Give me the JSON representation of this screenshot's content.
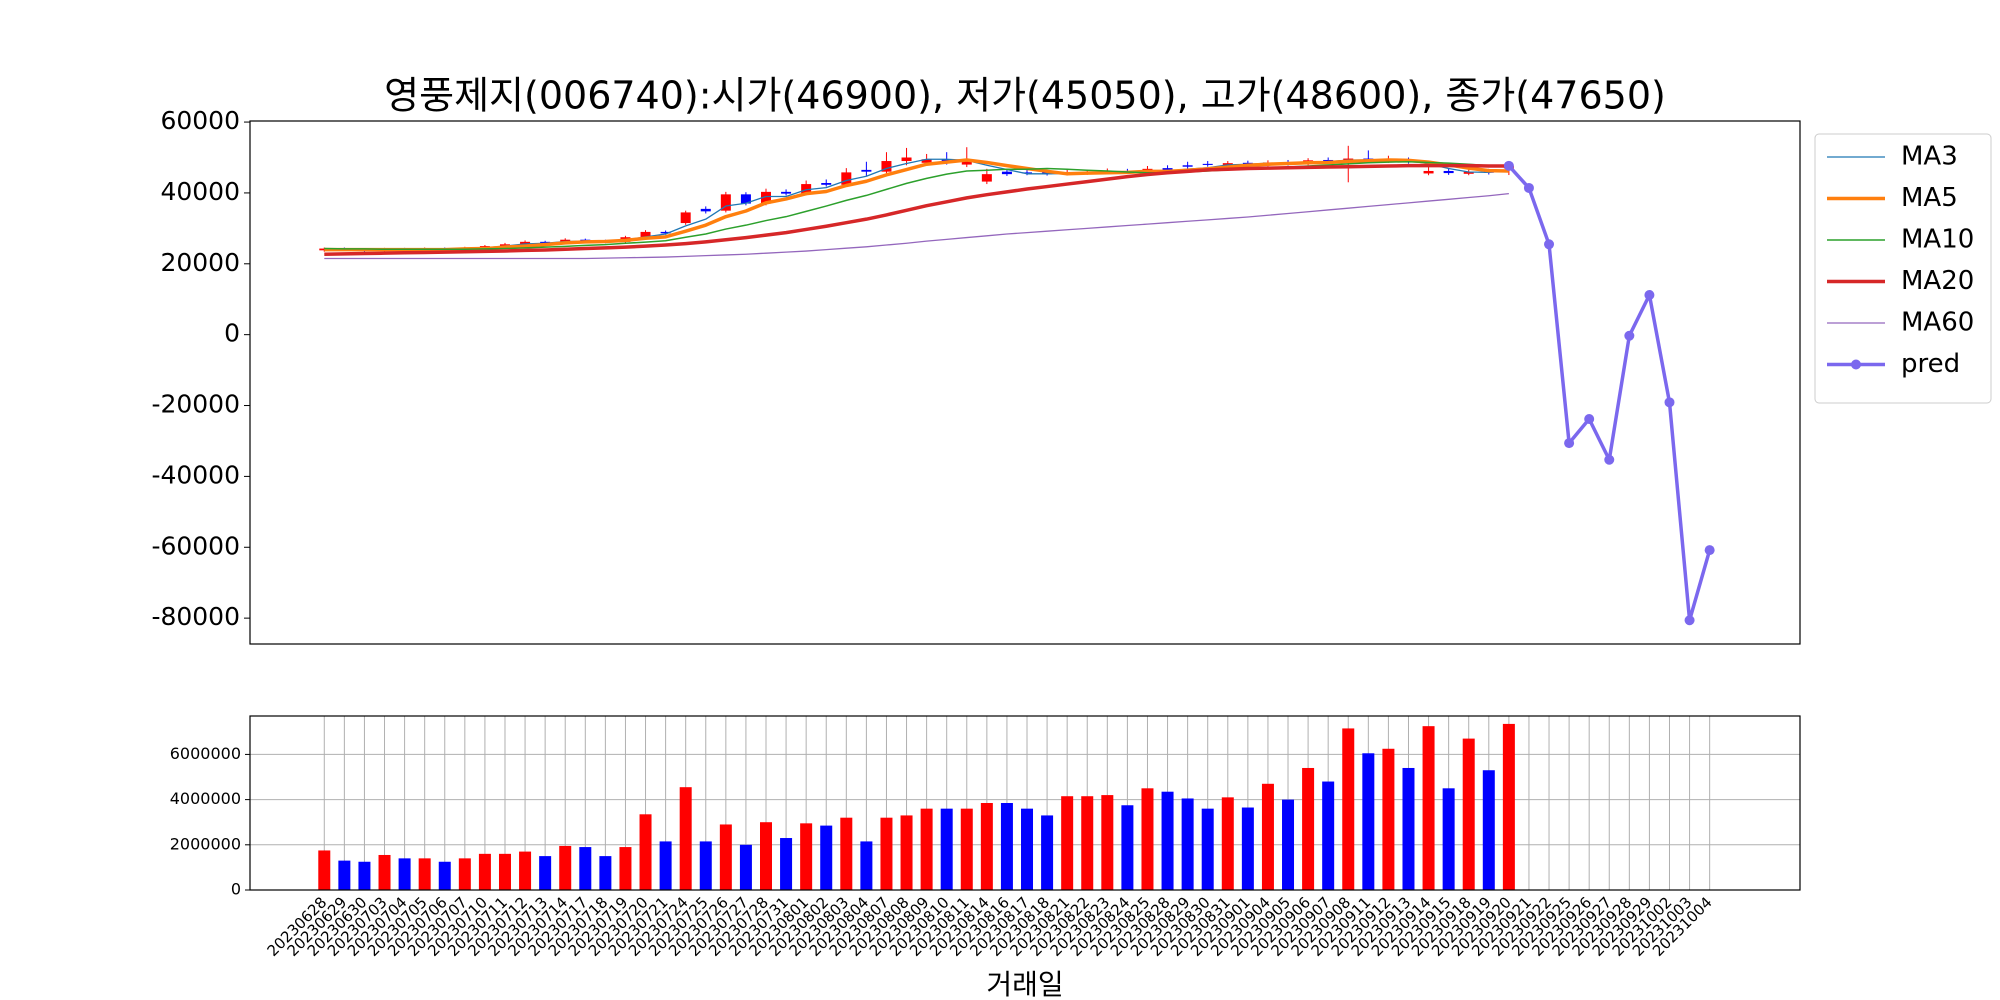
{
  "chart_data": [
    {
      "type": "candlestick",
      "title": "영풍제지(006740):시가(46900), 저가(45050), 고가(48600), 종가(47650)",
      "categories": [
        "20230628",
        "20230629",
        "20230630",
        "20230703",
        "20230704",
        "20230705",
        "20230706",
        "20230707",
        "20230710",
        "20230711",
        "20230712",
        "20230713",
        "20230714",
        "20230717",
        "20230718",
        "20230719",
        "20230720",
        "20230721",
        "20230724",
        "20230725",
        "20230726",
        "20230727",
        "20230728",
        "20230731",
        "20230801",
        "20230802",
        "20230803",
        "20230804",
        "20230807",
        "20230808",
        "20230809",
        "20230810",
        "20230811",
        "20230814",
        "20230816",
        "20230817",
        "20230818",
        "20230821",
        "20230822",
        "20230823",
        "20230824",
        "20230825",
        "20230828",
        "20230829",
        "20230830",
        "20230831",
        "20230901",
        "20230904",
        "20230905",
        "20230906",
        "20230907",
        "20230908",
        "20230911",
        "20230912",
        "20230913",
        "20230914",
        "20230915",
        "20230918",
        "20230919",
        "20230920",
        "20230921",
        "20230922",
        "20230925",
        "20230926",
        "20230927",
        "20230928",
        "20230929",
        "20231002",
        "20231003",
        "20231004"
      ],
      "open": [
        23800,
        24300,
        24000,
        23700,
        24200,
        23900,
        24300,
        24000,
        24500,
        25000,
        25500,
        26200,
        25800,
        26800,
        26500,
        26200,
        27500,
        29000,
        31500,
        35500,
        35000,
        39600,
        37000,
        40300,
        39800,
        42800,
        42300,
        46500,
        46000,
        49000,
        48500,
        49500,
        48000,
        43200,
        46000,
        45800,
        45800,
        45300,
        45500,
        45600,
        46200,
        45900,
        47000,
        47800,
        48200,
        47900,
        48500,
        48000,
        48700,
        48300,
        49300,
        48900,
        49700,
        49000,
        49300,
        45500,
        46200,
        45400,
        46300,
        46900,
        null,
        null,
        null,
        null,
        null,
        null,
        null,
        null,
        null,
        null
      ],
      "high": [
        24600,
        24600,
        24300,
        24500,
        24500,
        24600,
        24600,
        24800,
        25300,
        25900,
        26600,
        26500,
        27200,
        27100,
        26800,
        27900,
        29500,
        29400,
        35000,
        36200,
        40300,
        40200,
        41200,
        41000,
        43500,
        43800,
        47000,
        48800,
        51500,
        52700,
        51000,
        51500,
        52900,
        46800,
        46800,
        46500,
        46500,
        46600,
        46600,
        46900,
        46800,
        47600,
        47800,
        48800,
        49000,
        49000,
        49100,
        49200,
        49300,
        49800,
        50000,
        53300,
        52000,
        50500,
        50000,
        47500,
        46800,
        46600,
        46800,
        48600,
        null,
        null,
        null,
        null,
        null,
        null,
        null,
        null,
        null,
        null
      ],
      "low": [
        23400,
        23700,
        23300,
        23400,
        23500,
        23600,
        23700,
        23800,
        24200,
        24700,
        25200,
        25400,
        25500,
        26100,
        25800,
        26000,
        27200,
        28200,
        31000,
        34200,
        34500,
        36500,
        36500,
        39300,
        39300,
        41800,
        42000,
        44800,
        45500,
        47800,
        47600,
        48000,
        47300,
        42500,
        44800,
        45000,
        44900,
        44900,
        45100,
        45200,
        45400,
        45400,
        45500,
        46800,
        47400,
        47400,
        47500,
        47500,
        47700,
        47800,
        48300,
        43000,
        48600,
        48500,
        48300,
        45000,
        45100,
        45000,
        45200,
        45050,
        null,
        null,
        null,
        null,
        null,
        null,
        null,
        null,
        null,
        null
      ],
      "close": [
        24300,
        24000,
        23700,
        24200,
        23900,
        24300,
        24000,
        24500,
        25000,
        25500,
        26200,
        25800,
        26800,
        26500,
        26200,
        27500,
        29000,
        28600,
        34500,
        34800,
        39600,
        37000,
        40300,
        39800,
        42500,
        42300,
        45800,
        46000,
        49000,
        50000,
        49500,
        49000,
        49200,
        45300,
        45300,
        45500,
        45300,
        45800,
        45900,
        46100,
        45900,
        46800,
        46000,
        47400,
        47900,
        48400,
        48100,
        48600,
        48300,
        49200,
        48900,
        49700,
        49200,
        49500,
        48800,
        46200,
        45600,
        46000,
        45700,
        47650,
        null,
        null,
        null,
        null,
        null,
        null,
        null,
        null,
        null,
        null
      ],
      "up_color": "#ff0000",
      "down_color": "#0000ff",
      "series": [
        {
          "name": "MA3",
          "color": "#1f77b4",
          "width": 1.3,
          "values": [
            24200,
            24100,
            24000,
            24000,
            23900,
            24100,
            24100,
            24300,
            24500,
            25000,
            25600,
            25800,
            26300,
            26400,
            26500,
            26700,
            27600,
            28400,
            30700,
            32600,
            36300,
            37100,
            39000,
            39000,
            40900,
            41500,
            43500,
            44700,
            46900,
            48300,
            49500,
            49500,
            49200,
            47800,
            46600,
            45400,
            45400,
            45500,
            45700,
            45900,
            46000,
            46300,
            46200,
            46700,
            47100,
            47900,
            48100,
            48400,
            48300,
            48700,
            48800,
            49300,
            49300,
            49500,
            49200,
            48200,
            46900,
            45900,
            45800,
            46500,
            null,
            null,
            null,
            null,
            null,
            null,
            null,
            null,
            null,
            null
          ]
        },
        {
          "name": "MA5",
          "color": "#ff7f0e",
          "width": 3.5,
          "values": [
            24000,
            24000,
            24000,
            24000,
            24000,
            24000,
            24000,
            24200,
            24300,
            24700,
            25000,
            25400,
            25900,
            26200,
            26300,
            26600,
            27200,
            27600,
            29200,
            30900,
            33300,
            34900,
            37200,
            38300,
            39800,
            40400,
            42100,
            43300,
            45100,
            46600,
            48100,
            48700,
            49300,
            48600,
            47700,
            46900,
            46100,
            45400,
            45600,
            45700,
            45800,
            46100,
            46100,
            46400,
            46800,
            47300,
            47800,
            48100,
            48300,
            48500,
            48600,
            48900,
            49100,
            49300,
            49200,
            48700,
            47900,
            47000,
            46300,
            46200,
            null,
            null,
            null,
            null,
            null,
            null,
            null,
            null,
            null,
            null
          ]
        },
        {
          "name": "MA10",
          "color": "#2ca02c",
          "width": 1.5,
          "values": [
            24300,
            24200,
            24200,
            24100,
            24100,
            24100,
            24100,
            24100,
            24200,
            24300,
            24500,
            24700,
            24900,
            25200,
            25400,
            25800,
            26100,
            26500,
            27500,
            28400,
            29800,
            30900,
            32200,
            33300,
            34800,
            36300,
            37900,
            39300,
            41000,
            42700,
            44100,
            45300,
            46200,
            46400,
            46700,
            46700,
            46900,
            46700,
            46400,
            46200,
            45900,
            45700,
            45700,
            45900,
            46200,
            46500,
            46800,
            47100,
            47300,
            47600,
            47900,
            48200,
            48500,
            48700,
            48800,
            48600,
            48400,
            48100,
            47700,
            47500,
            null,
            null,
            null,
            null,
            null,
            null,
            null,
            null,
            null,
            null
          ]
        },
        {
          "name": "MA20",
          "color": "#d62728",
          "width": 3.5,
          "values": [
            22700,
            22800,
            22900,
            23000,
            23100,
            23200,
            23300,
            23400,
            23500,
            23600,
            23800,
            23900,
            24100,
            24300,
            24500,
            24700,
            25000,
            25300,
            25700,
            26200,
            26800,
            27400,
            28100,
            28800,
            29700,
            30600,
            31600,
            32600,
            33800,
            35100,
            36400,
            37500,
            38600,
            39500,
            40300,
            41100,
            41800,
            42500,
            43200,
            43900,
            44600,
            45200,
            45700,
            46100,
            46500,
            46700,
            46900,
            47000,
            47100,
            47200,
            47300,
            47400,
            47500,
            47600,
            47700,
            47700,
            47700,
            47700,
            47600,
            47600,
            null,
            null,
            null,
            null,
            null,
            null,
            null,
            null,
            null,
            null
          ]
        },
        {
          "name": "MA60",
          "color": "#9467bd",
          "width": 1.3,
          "values": [
            21500,
            21500,
            21500,
            21500,
            21500,
            21500,
            21500,
            21500,
            21500,
            21500,
            21500,
            21500,
            21500,
            21500,
            21600,
            21700,
            21800,
            21900,
            22100,
            22300,
            22500,
            22700,
            23000,
            23300,
            23600,
            24000,
            24400,
            24800,
            25300,
            25800,
            26400,
            26900,
            27400,
            27900,
            28400,
            28800,
            29200,
            29600,
            30000,
            30400,
            30800,
            31200,
            31600,
            32000,
            32400,
            32800,
            33200,
            33700,
            34200,
            34700,
            35200,
            35700,
            36200,
            36700,
            37200,
            37700,
            38200,
            38700,
            39200,
            39800,
            null,
            null,
            null,
            null,
            null,
            null,
            null,
            null,
            null,
            null
          ]
        },
        {
          "name": "pred",
          "color": "#7b68ee",
          "width": 3.5,
          "marker": true,
          "values": [
            null,
            null,
            null,
            null,
            null,
            null,
            null,
            null,
            null,
            null,
            null,
            null,
            null,
            null,
            null,
            null,
            null,
            null,
            null,
            null,
            null,
            null,
            null,
            null,
            null,
            null,
            null,
            null,
            null,
            null,
            null,
            null,
            null,
            null,
            null,
            null,
            null,
            null,
            null,
            null,
            null,
            null,
            null,
            null,
            null,
            null,
            null,
            null,
            null,
            null,
            null,
            null,
            null,
            null,
            null,
            null,
            null,
            null,
            null,
            47650,
            41400,
            25500,
            -30600,
            -23800,
            -35300,
            -300,
            11200,
            -19100,
            -80600,
            -60800
          ]
        }
      ],
      "ylim": [
        -87300,
        60300
      ],
      "yticks": [
        -80000,
        -60000,
        -40000,
        -20000,
        0,
        20000,
        40000,
        60000
      ],
      "legend": "outside right"
    },
    {
      "type": "bar",
      "xlabel": "거래일",
      "values": [
        1750000,
        1300000,
        1250000,
        1550000,
        1400000,
        1400000,
        1250000,
        1400000,
        1600000,
        1600000,
        1700000,
        1500000,
        1950000,
        1900000,
        1500000,
        1900000,
        3350000,
        2150000,
        4550000,
        2150000,
        2900000,
        2000000,
        3000000,
        2300000,
        2950000,
        2850000,
        3200000,
        2150000,
        3200000,
        3300000,
        3600000,
        3600000,
        3600000,
        3850000,
        3850000,
        3600000,
        3300000,
        4150000,
        4150000,
        4200000,
        3750000,
        4500000,
        4350000,
        4050000,
        3600000,
        4100000,
        3650000,
        4700000,
        4000000,
        5400000,
        4800000,
        7150000,
        6050000,
        6250000,
        5400000,
        7250000,
        4500000,
        6700000,
        5300000,
        7350000,
        null,
        null,
        null,
        null,
        null,
        null,
        null,
        null,
        null,
        null
      ],
      "ylim": [
        0,
        7700000
      ],
      "yticks": [
        0,
        2000000,
        4000000,
        6000000
      ],
      "grid": true
    }
  ]
}
